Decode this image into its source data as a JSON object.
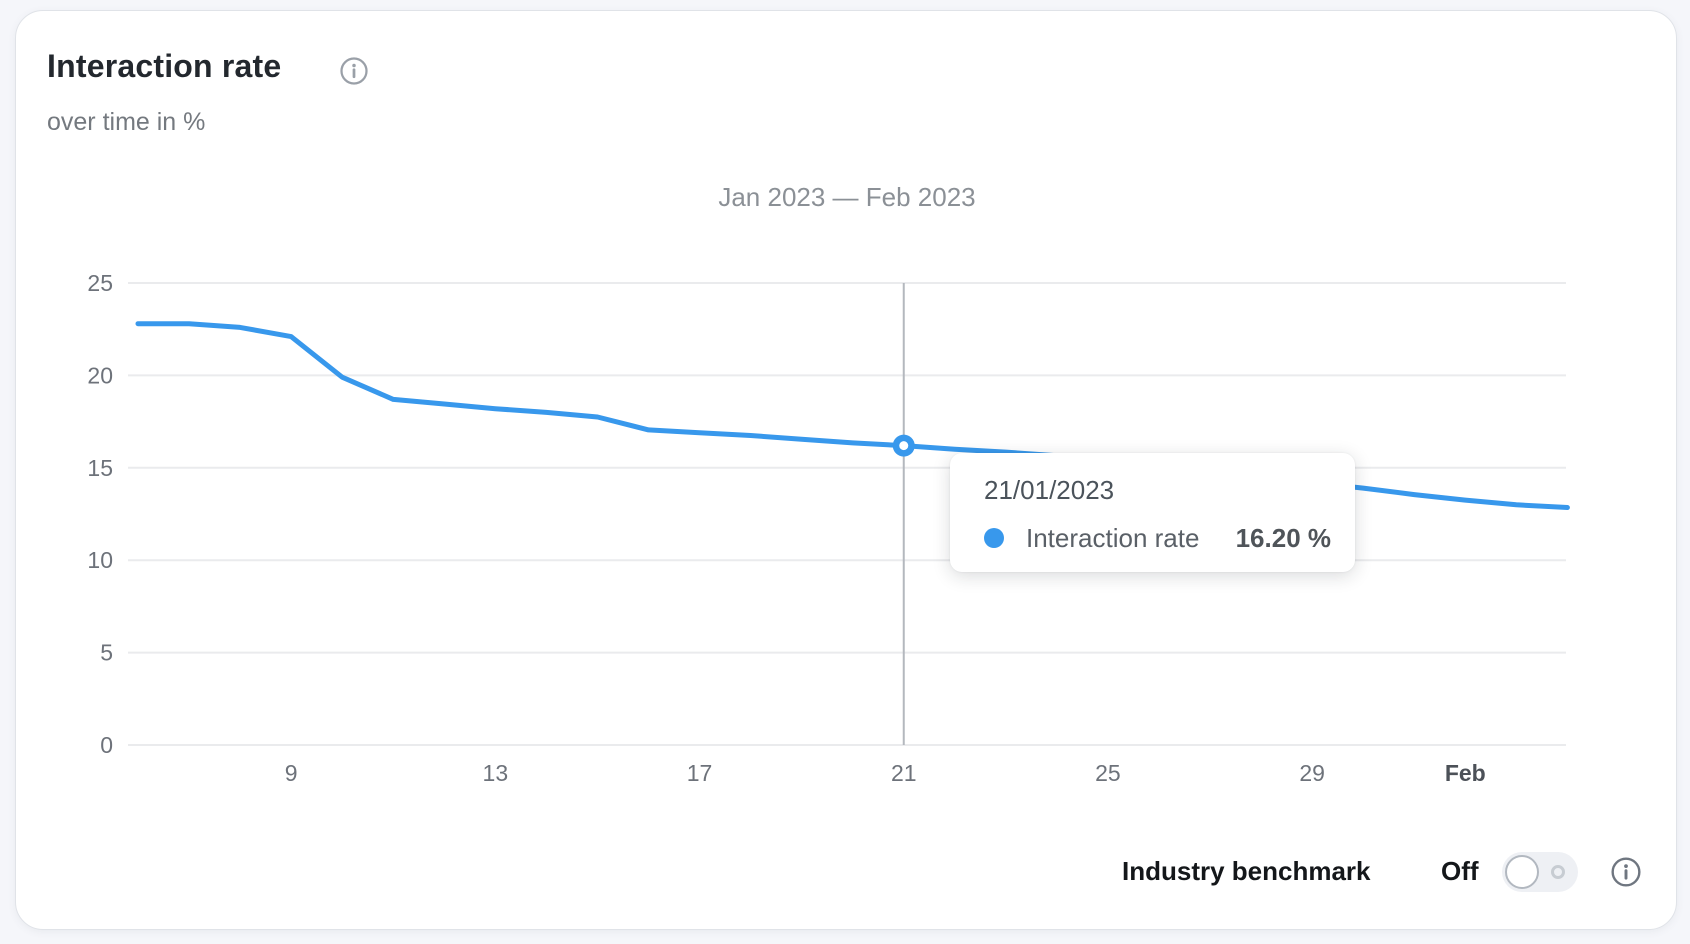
{
  "card": {
    "title": "Interaction rate",
    "subtitle": "over time in %"
  },
  "chart_data": {
    "type": "line",
    "title": "Jan 2023 — Feb 2023",
    "ylim": [
      0,
      25
    ],
    "y_ticks": [
      0,
      5,
      10,
      15,
      20,
      25
    ],
    "grid": "horizontal",
    "legend_position": "none",
    "x_ticks": [
      {
        "label": "9",
        "index": 3,
        "bold": false
      },
      {
        "label": "13",
        "index": 7,
        "bold": false
      },
      {
        "label": "17",
        "index": 11,
        "bold": false
      },
      {
        "label": "21",
        "index": 15,
        "bold": false
      },
      {
        "label": "25",
        "index": 19,
        "bold": false
      },
      {
        "label": "29",
        "index": 23,
        "bold": false
      },
      {
        "label": "Feb",
        "index": 26,
        "bold": true
      }
    ],
    "series": [
      {
        "name": "Interaction rate",
        "color": "#3898ec",
        "dates": [
          "06/01/2023",
          "07/01/2023",
          "08/01/2023",
          "09/01/2023",
          "10/01/2023",
          "11/01/2023",
          "12/01/2023",
          "13/01/2023",
          "14/01/2023",
          "15/01/2023",
          "16/01/2023",
          "17/01/2023",
          "18/01/2023",
          "19/01/2023",
          "20/01/2023",
          "21/01/2023",
          "22/01/2023",
          "23/01/2023",
          "24/01/2023",
          "25/01/2023",
          "26/01/2023",
          "27/01/2023",
          "28/01/2023",
          "29/01/2023",
          "30/01/2023",
          "31/01/2023",
          "01/02/2023",
          "02/02/2023",
          "03/02/2023"
        ],
        "values": [
          22.8,
          22.8,
          22.6,
          22.1,
          19.9,
          18.7,
          18.45,
          18.2,
          18.0,
          17.75,
          17.05,
          16.9,
          16.75,
          16.55,
          16.35,
          16.2,
          16.0,
          15.85,
          15.65,
          15.45,
          15.15,
          14.85,
          14.5,
          14.2,
          13.9,
          13.55,
          13.25,
          13.0,
          12.85
        ]
      }
    ],
    "highlight": {
      "index": 15,
      "date": "21/01/2023",
      "value": 16.2,
      "value_display": "16.20 %"
    }
  },
  "tooltip": {
    "date": "21/01/2023",
    "label": "Interaction rate",
    "value": "16.20 %"
  },
  "footer": {
    "benchmark_label": "Industry benchmark",
    "toggle_state": "Off"
  },
  "colors": {
    "line": "#3898ec",
    "grid": "#eaebed",
    "crosshair": "#b4b8be",
    "axis_text": "#6d727a",
    "axis_text_bold": "#4c5158",
    "icon_gray": "#8a9098"
  }
}
